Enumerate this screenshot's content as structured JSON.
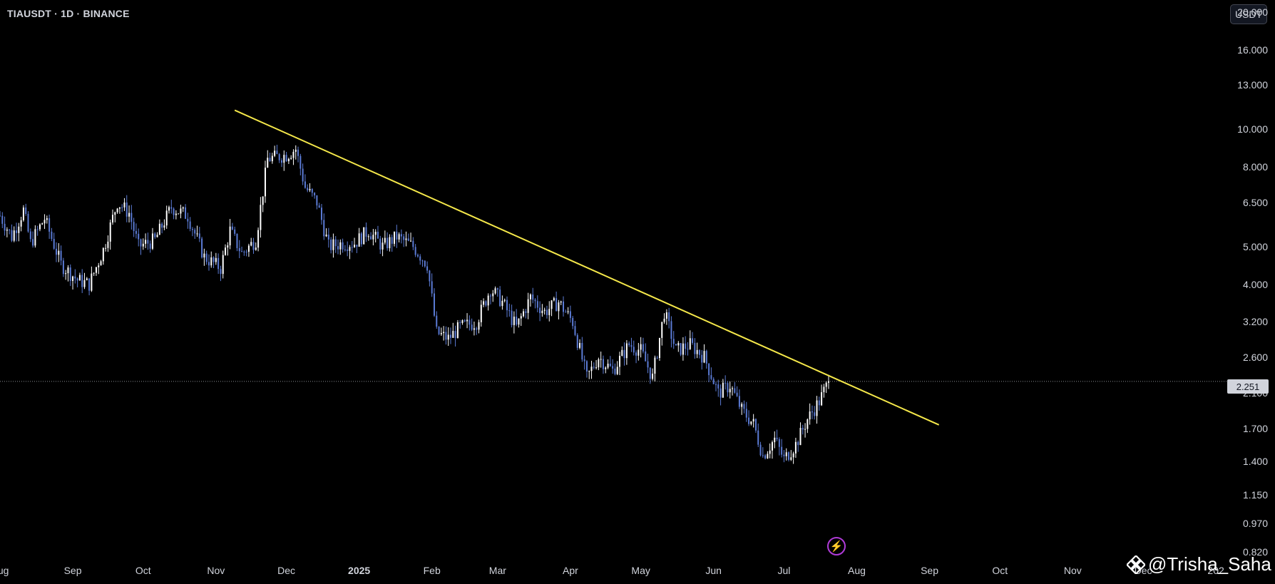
{
  "header": {
    "symbol_line": "TIAUSDT · 1D · BINANCE"
  },
  "currency_badge": "USDT",
  "price_label": "2.251",
  "watermark": {
    "text": "@Trisha_Saha",
    "logo_icon": "binance-diamond-icon"
  },
  "colors": {
    "background": "#000000",
    "candle": "#5b7bd5",
    "candle_up": "#ffffff",
    "trendline": "#f5e84a",
    "text": "#d1d4dc",
    "bolt": "#b03bd8"
  },
  "chart_data": {
    "type": "candlestick",
    "title": "",
    "xlabel": "",
    "ylabel": "",
    "y_scale": "log",
    "ylim": [
      0.8,
      21.5
    ],
    "y_ticks": [
      "20.000",
      "16.000",
      "13.000",
      "10.000",
      "8.000",
      "6.500",
      "5.000",
      "4.000",
      "3.200",
      "2.600",
      "2.100",
      "1.700",
      "1.400",
      "1.150",
      "0.970",
      "0.820"
    ],
    "x_ticks": [
      "Aug",
      "Sep",
      "Oct",
      "Nov",
      "Dec",
      "2025",
      "Feb",
      "Mar",
      "Apr",
      "May",
      "Jun",
      "Jul",
      "Aug",
      "Sep",
      "Oct",
      "Nov",
      "Dec",
      "202"
    ],
    "x_range": [
      "2024-08-01",
      "2026-01-04"
    ],
    "last_price": 2.251,
    "close_path": [
      [
        "2024-08-01",
        6.0
      ],
      [
        "2024-08-06",
        5.3
      ],
      [
        "2024-08-11",
        6.2
      ],
      [
        "2024-08-14",
        5.1
      ],
      [
        "2024-08-20",
        5.9
      ],
      [
        "2024-08-27",
        4.5
      ],
      [
        "2024-09-03",
        4.1
      ],
      [
        "2024-09-08",
        4.0
      ],
      [
        "2024-09-14",
        4.9
      ],
      [
        "2024-09-20",
        6.5
      ],
      [
        "2024-09-25",
        6.1
      ],
      [
        "2024-09-29",
        5.0
      ],
      [
        "2024-10-06",
        5.2
      ],
      [
        "2024-10-13",
        6.3
      ],
      [
        "2024-10-20",
        6.0
      ],
      [
        "2024-10-27",
        4.7
      ],
      [
        "2024-11-03",
        4.4
      ],
      [
        "2024-11-07",
        5.5
      ],
      [
        "2024-11-12",
        4.8
      ],
      [
        "2024-11-18",
        5.2
      ],
      [
        "2024-11-23",
        8.4
      ],
      [
        "2024-12-01",
        8.6
      ],
      [
        "2024-12-05",
        8.9
      ],
      [
        "2024-12-09",
        7.1
      ],
      [
        "2024-12-14",
        6.5
      ],
      [
        "2024-12-19",
        5.0
      ],
      [
        "2024-12-25",
        5.1
      ],
      [
        "2024-12-30",
        5.1
      ],
      [
        "2025-01-05",
        5.5
      ],
      [
        "2025-01-11",
        5.0
      ],
      [
        "2025-01-17",
        5.3
      ],
      [
        "2025-01-24",
        5.0
      ],
      [
        "2025-01-30",
        4.5
      ],
      [
        "2025-02-03",
        3.0
      ],
      [
        "2025-02-08",
        2.9
      ],
      [
        "2025-02-13",
        3.1
      ],
      [
        "2025-02-20",
        3.2
      ],
      [
        "2025-02-26",
        3.9
      ],
      [
        "2025-03-03",
        3.6
      ],
      [
        "2025-03-09",
        3.1
      ],
      [
        "2025-03-15",
        3.7
      ],
      [
        "2025-03-21",
        3.4
      ],
      [
        "2025-03-27",
        3.6
      ],
      [
        "2025-04-02",
        3.2
      ],
      [
        "2025-04-08",
        2.3
      ],
      [
        "2025-04-13",
        2.6
      ],
      [
        "2025-04-19",
        2.4
      ],
      [
        "2025-04-26",
        2.8
      ],
      [
        "2025-05-01",
        2.7
      ],
      [
        "2025-05-06",
        2.3
      ],
      [
        "2025-05-11",
        3.4
      ],
      [
        "2025-05-16",
        2.7
      ],
      [
        "2025-05-22",
        2.8
      ],
      [
        "2025-05-28",
        2.6
      ],
      [
        "2025-06-03",
        2.1
      ],
      [
        "2025-06-08",
        2.2
      ],
      [
        "2025-06-13",
        1.9
      ],
      [
        "2025-06-18",
        1.75
      ],
      [
        "2025-06-22",
        1.45
      ],
      [
        "2025-06-27",
        1.6
      ],
      [
        "2025-07-01",
        1.42
      ],
      [
        "2025-07-06",
        1.55
      ],
      [
        "2025-07-11",
        1.8
      ],
      [
        "2025-07-16",
        2.0
      ],
      [
        "2025-07-20",
        2.251
      ]
    ],
    "trendline": {
      "start": [
        "2024-11-09",
        11.2
      ],
      "end": [
        "2025-09-05",
        1.74
      ],
      "color": "#f5e84a"
    }
  }
}
